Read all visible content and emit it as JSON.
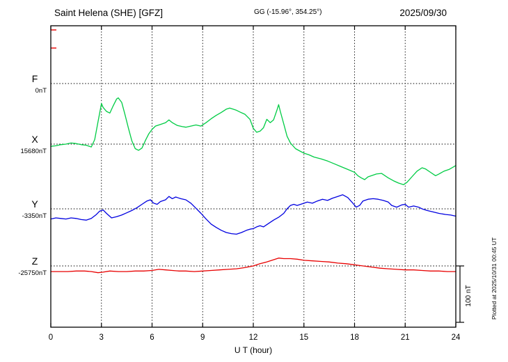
{
  "header": {
    "station_title": "Saint Helena (SHE)  [GFZ]",
    "gg_coords": "GG (-15.96°, 354.25°)",
    "date": "2025/09/30"
  },
  "plotted_at": "Plotted at 2025/10/31 00:45 UT",
  "scale_bar": {
    "label": "100 nT"
  },
  "chart_data": {
    "type": "line",
    "title": "Saint Helena (SHE) [GFZ] magnetogram 2025/09/30",
    "x_title": "U T (hour)",
    "x_range": [
      0,
      24
    ],
    "x_ticks": [
      0,
      3,
      6,
      9,
      12,
      15,
      18,
      21,
      24
    ],
    "scale_nT_per_division": 100,
    "series": [
      {
        "component": "F",
        "baseline_label": "0nT",
        "baseline_nT": 0,
        "color": "#ffa800",
        "points": []
      },
      {
        "component": "X",
        "baseline_label": "15680nT",
        "baseline_nT": 15680,
        "color": "#00cc44",
        "points": [
          [
            0,
            -4
          ],
          [
            0.3,
            -3
          ],
          [
            0.6,
            -1
          ],
          [
            0.9,
            0
          ],
          [
            1.2,
            2
          ],
          [
            1.5,
            1
          ],
          [
            1.8,
            -1
          ],
          [
            2.1,
            -2
          ],
          [
            2.4,
            -5
          ],
          [
            2.6,
            8
          ],
          [
            2.8,
            40
          ],
          [
            3,
            72
          ],
          [
            3.1,
            65
          ],
          [
            3.3,
            58
          ],
          [
            3.5,
            55
          ],
          [
            3.7,
            68
          ],
          [
            3.9,
            80
          ],
          [
            4,
            82
          ],
          [
            4.2,
            74
          ],
          [
            4.4,
            52
          ],
          [
            4.6,
            28
          ],
          [
            4.8,
            6
          ],
          [
            5,
            -8
          ],
          [
            5.2,
            -11
          ],
          [
            5.4,
            -7
          ],
          [
            5.6,
            6
          ],
          [
            5.8,
            18
          ],
          [
            6,
            26
          ],
          [
            6.2,
            32
          ],
          [
            6.5,
            35
          ],
          [
            6.8,
            38
          ],
          [
            7,
            43
          ],
          [
            7.2,
            38
          ],
          [
            7.5,
            33
          ],
          [
            7.8,
            31
          ],
          [
            8,
            30
          ],
          [
            8.3,
            32
          ],
          [
            8.6,
            34
          ],
          [
            8.9,
            32
          ],
          [
            9.2,
            38
          ],
          [
            9.5,
            45
          ],
          [
            9.8,
            51
          ],
          [
            10.1,
            56
          ],
          [
            10.4,
            62
          ],
          [
            10.6,
            64
          ],
          [
            10.8,
            62
          ],
          [
            11,
            60
          ],
          [
            11.2,
            57
          ],
          [
            11.5,
            53
          ],
          [
            11.8,
            44
          ],
          [
            12,
            28
          ],
          [
            12.2,
            21
          ],
          [
            12.4,
            23
          ],
          [
            12.6,
            29
          ],
          [
            12.8,
            44
          ],
          [
            13,
            38
          ],
          [
            13.2,
            43
          ],
          [
            13.4,
            60
          ],
          [
            13.5,
            70
          ],
          [
            13.6,
            58
          ],
          [
            13.8,
            36
          ],
          [
            14,
            14
          ],
          [
            14.2,
            2
          ],
          [
            14.5,
            -8
          ],
          [
            14.8,
            -13
          ],
          [
            15,
            -16
          ],
          [
            15.3,
            -19
          ],
          [
            15.6,
            -23
          ],
          [
            16,
            -26
          ],
          [
            16.4,
            -30
          ],
          [
            16.8,
            -35
          ],
          [
            17.2,
            -40
          ],
          [
            17.6,
            -45
          ],
          [
            18,
            -50
          ],
          [
            18.2,
            -56
          ],
          [
            18.4,
            -60
          ],
          [
            18.6,
            -63
          ],
          [
            18.8,
            -58
          ],
          [
            19,
            -56
          ],
          [
            19.3,
            -53
          ],
          [
            19.6,
            -52
          ],
          [
            20,
            -60
          ],
          [
            20.3,
            -65
          ],
          [
            20.6,
            -69
          ],
          [
            20.9,
            -72
          ],
          [
            21.1,
            -68
          ],
          [
            21.4,
            -58
          ],
          [
            21.7,
            -48
          ],
          [
            22,
            -42
          ],
          [
            22.2,
            -44
          ],
          [
            22.5,
            -50
          ],
          [
            22.8,
            -56
          ],
          [
            23,
            -53
          ],
          [
            23.3,
            -48
          ],
          [
            23.6,
            -45
          ],
          [
            24,
            -38
          ]
        ]
      },
      {
        "component": "Y",
        "baseline_label": "-3350nT",
        "baseline_nT": -3350,
        "color": "#0000e0",
        "points": [
          [
            0,
            -18
          ],
          [
            0.3,
            -16
          ],
          [
            0.6,
            -17
          ],
          [
            0.9,
            -18
          ],
          [
            1.2,
            -16
          ],
          [
            1.5,
            -17
          ],
          [
            1.8,
            -19
          ],
          [
            2.1,
            -20
          ],
          [
            2.4,
            -17
          ],
          [
            2.7,
            -10
          ],
          [
            2.9,
            -4
          ],
          [
            3.1,
            -2
          ],
          [
            3.3,
            -8
          ],
          [
            3.6,
            -16
          ],
          [
            3.9,
            -14
          ],
          [
            4.2,
            -11
          ],
          [
            4.5,
            -7
          ],
          [
            4.8,
            -3
          ],
          [
            5.1,
            2
          ],
          [
            5.4,
            8
          ],
          [
            5.7,
            14
          ],
          [
            5.9,
            16
          ],
          [
            6.1,
            10
          ],
          [
            6.3,
            8
          ],
          [
            6.5,
            13
          ],
          [
            6.8,
            16
          ],
          [
            7,
            22
          ],
          [
            7.2,
            18
          ],
          [
            7.4,
            21
          ],
          [
            7.7,
            18
          ],
          [
            8,
            16
          ],
          [
            8.3,
            10
          ],
          [
            8.6,
            1
          ],
          [
            8.9,
            -8
          ],
          [
            9.2,
            -18
          ],
          [
            9.5,
            -27
          ],
          [
            9.8,
            -33
          ],
          [
            10.1,
            -38
          ],
          [
            10.4,
            -42
          ],
          [
            10.7,
            -44
          ],
          [
            11,
            -45
          ],
          [
            11.3,
            -42
          ],
          [
            11.6,
            -38
          ],
          [
            11.8,
            -36
          ],
          [
            12,
            -35
          ],
          [
            12.2,
            -32
          ],
          [
            12.4,
            -30
          ],
          [
            12.6,
            -32
          ],
          [
            12.9,
            -26
          ],
          [
            13.2,
            -20
          ],
          [
            13.5,
            -15
          ],
          [
            13.8,
            -8
          ],
          [
            14,
            0
          ],
          [
            14.2,
            6
          ],
          [
            14.4,
            8
          ],
          [
            14.6,
            6
          ],
          [
            14.9,
            9
          ],
          [
            15.2,
            12
          ],
          [
            15.5,
            10
          ],
          [
            15.8,
            14
          ],
          [
            16.1,
            17
          ],
          [
            16.4,
            15
          ],
          [
            16.7,
            19
          ],
          [
            17,
            22
          ],
          [
            17.3,
            25
          ],
          [
            17.6,
            20
          ],
          [
            17.9,
            10
          ],
          [
            18.1,
            3
          ],
          [
            18.3,
            6
          ],
          [
            18.5,
            14
          ],
          [
            18.8,
            17
          ],
          [
            19.1,
            18
          ],
          [
            19.4,
            17
          ],
          [
            19.7,
            15
          ],
          [
            20,
            12
          ],
          [
            20.2,
            6
          ],
          [
            20.5,
            3
          ],
          [
            20.8,
            7
          ],
          [
            21,
            8
          ],
          [
            21.2,
            3
          ],
          [
            21.5,
            5
          ],
          [
            21.8,
            3
          ],
          [
            22,
            0
          ],
          [
            22.3,
            -3
          ],
          [
            22.6,
            -5
          ],
          [
            23,
            -8
          ],
          [
            23.4,
            -10
          ],
          [
            23.7,
            -11
          ],
          [
            24,
            -13
          ]
        ]
      },
      {
        "component": "Z",
        "baseline_label": "-25750nT",
        "baseline_nT": -25750,
        "color": "#e80000",
        "points": [
          [
            0,
            -10
          ],
          [
            0.5,
            -10
          ],
          [
            1,
            -10
          ],
          [
            1.5,
            -9
          ],
          [
            2,
            -9
          ],
          [
            2.4,
            -10
          ],
          [
            2.8,
            -12
          ],
          [
            3.1,
            -11
          ],
          [
            3.5,
            -9
          ],
          [
            4,
            -10
          ],
          [
            4.5,
            -10
          ],
          [
            5,
            -9
          ],
          [
            5.5,
            -9
          ],
          [
            6,
            -8
          ],
          [
            6.4,
            -6
          ],
          [
            6.8,
            -7
          ],
          [
            7.2,
            -8
          ],
          [
            7.6,
            -9
          ],
          [
            8,
            -9
          ],
          [
            8.5,
            -10
          ],
          [
            9,
            -9
          ],
          [
            9.5,
            -8
          ],
          [
            10,
            -7
          ],
          [
            10.5,
            -6
          ],
          [
            11,
            -5
          ],
          [
            11.5,
            -3
          ],
          [
            12,
            0
          ],
          [
            12.4,
            4
          ],
          [
            12.8,
            7
          ],
          [
            13.2,
            11
          ],
          [
            13.5,
            14
          ],
          [
            13.8,
            13
          ],
          [
            14.2,
            13
          ],
          [
            14.6,
            12
          ],
          [
            15,
            10
          ],
          [
            15.5,
            9
          ],
          [
            16,
            8
          ],
          [
            16.5,
            7
          ],
          [
            17,
            5
          ],
          [
            17.5,
            4
          ],
          [
            18,
            2
          ],
          [
            18.5,
            0
          ],
          [
            19,
            -2
          ],
          [
            19.5,
            -4
          ],
          [
            20,
            -5
          ],
          [
            20.5,
            -6
          ],
          [
            21,
            -7
          ],
          [
            21.5,
            -7
          ],
          [
            22,
            -8
          ],
          [
            22.5,
            -9
          ],
          [
            23,
            -9
          ],
          [
            23.5,
            -10
          ],
          [
            24,
            -10
          ]
        ]
      }
    ]
  }
}
